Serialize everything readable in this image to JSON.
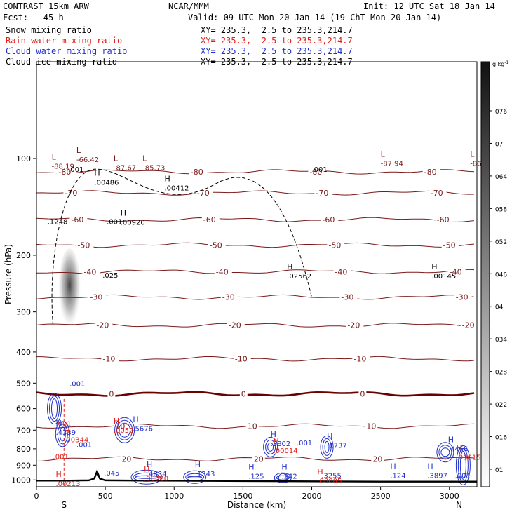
{
  "header": {
    "model": "CONTRAST 15km ARW",
    "org": "NCAR/MMM",
    "init": "Init: 12 UTC Sat 18 Jan 14",
    "fcst": "Fcst:   45 h",
    "valid": "Valid: 09 UTC Mon 20 Jan 14 (19 ChT Mon 20 Jan 14)"
  },
  "fields": [
    {
      "name": "Snow mixing ratio",
      "xy": "XY= 235.3,  2.5 to 235.3,214.7",
      "color": "#000000"
    },
    {
      "name": "Rain water mixing ratio",
      "xy": "XY= 235.3,  2.5 to 235.3,214.7",
      "color": "#e0201b"
    },
    {
      "name": "Cloud water mixing ratio",
      "xy": "XY= 235.3,  2.5 to 235.3,214.7",
      "color": "#1f2fc9"
    },
    {
      "name": "Cloud ice mixing ratio",
      "xy": "XY= 235.3,  2.5 to 235.3,214.7",
      "color": "#000000"
    }
  ],
  "colors": {
    "temperature": "#7b1a1a",
    "freezing_line": "#6a0000",
    "rain": "#e0201b",
    "cloud_water": "#1f2fc9",
    "terrain": "#000000"
  },
  "chart_data": {
    "type": "line",
    "xlabel": "Distance (km)",
    "ylabel": "Pressure (hPa)",
    "xlim": [
      0,
      3200
    ],
    "ylim": [
      1050,
      50
    ],
    "y_scale": "log-pressure",
    "x_ticks": [
      "0",
      "500",
      "1000",
      "1500",
      "2000",
      "2500",
      "3000"
    ],
    "y_ticks": [
      "100",
      "200",
      "300",
      "400",
      "500",
      "600",
      "700",
      "800",
      "900",
      "1000"
    ],
    "endpoints": {
      "left": "S",
      "right": "N"
    },
    "colorbar": {
      "unit": "g kg",
      "unit_exp": "-1",
      "ticks": [
        ".076",
        ".07",
        ".064",
        ".058",
        ".052",
        ".046",
        ".04",
        ".034",
        ".028",
        ".022",
        ".016",
        ".01"
      ]
    },
    "temperature_isotherms": [
      {
        "label": "-80",
        "p": 110,
        "x": [
          0,
          3200
        ]
      },
      {
        "label": "-70",
        "p": 128,
        "x": [
          0,
          3200
        ]
      },
      {
        "label": "-60",
        "p": 155,
        "x": [
          0,
          3200
        ]
      },
      {
        "label": "-50",
        "p": 186,
        "x": [
          0,
          3200
        ]
      },
      {
        "label": "-40",
        "p": 225,
        "x": [
          0,
          3200
        ]
      },
      {
        "label": "-30",
        "p": 270,
        "x": [
          0,
          3200
        ]
      },
      {
        "label": "-20",
        "p": 330,
        "x": [
          0,
          3200
        ]
      },
      {
        "label": "-10",
        "p": 420,
        "x": [
          0,
          3200
        ]
      },
      {
        "label": "0",
        "p": 540,
        "x": [
          0,
          3200
        ]
      },
      {
        "label": "10",
        "p": 680,
        "x": [
          0,
          3200
        ]
      },
      {
        "label": "20",
        "p": 860,
        "x": [
          0,
          3200
        ]
      }
    ],
    "terrain": {
      "x": [
        0,
        200,
        380,
        420,
        440,
        460,
        500,
        800,
        1500,
        2000,
        2500,
        3000,
        3200
      ],
      "p": [
        1005,
        1005,
        1003,
        990,
        940,
        990,
        1003,
        1005,
        1008,
        1010,
        1012,
        1012,
        1012
      ]
    },
    "isotherm_labels": [
      "-80",
      "-80",
      "-80",
      "-70",
      "-70",
      "-60",
      "-60",
      "-60",
      "-50",
      "-50",
      "-50",
      "-40",
      "-40",
      "-40",
      "-30",
      "-30",
      "-30",
      "-20",
      "-20",
      "-20",
      "-10",
      "-10",
      "-10",
      "-10",
      "0",
      "0",
      "10",
      "10",
      "10",
      "20",
      "20",
      "20"
    ],
    "extrema": [
      {
        "kind": "L",
        "value": "-88.19",
        "x": 110,
        "p": 107,
        "color": "#7b1a1a"
      },
      {
        "kind": "L",
        "value": "-66.42",
        "x": 290,
        "p": 102,
        "color": "#7b1a1a"
      },
      {
        "kind": "L",
        "value": "-87.67",
        "x": 560,
        "p": 108,
        "color": "#7b1a1a"
      },
      {
        "kind": "L",
        "value": "-85.73",
        "x": 770,
        "p": 108,
        "color": "#7b1a1a"
      },
      {
        "kind": "L",
        "value": "-87.94",
        "x": 2500,
        "p": 105,
        "color": "#7b1a1a"
      },
      {
        "kind": "L",
        "value": "-86.",
        "x": 3150,
        "p": 105,
        "color": "#7b1a1a"
      },
      {
        "kind": "H",
        "value": ".00486",
        "x": 420,
        "p": 120,
        "color": "#000000"
      },
      {
        "kind": "H",
        "value": ".00412",
        "x": 930,
        "p": 125,
        "color": "#000000"
      },
      {
        "kind": "H",
        "value": ".00920",
        "x": 610,
        "p": 160,
        "color": "#000000"
      },
      {
        "kind": "H",
        "value": ".02562",
        "x": 1820,
        "p": 235,
        "color": "#000000"
      },
      {
        "kind": "H",
        "value": ".00145",
        "x": 2870,
        "p": 235,
        "color": "#000000"
      },
      {
        "kind": "H",
        "value": ".4339",
        "x": 140,
        "p": 720,
        "color": "#1f2fc9"
      },
      {
        "kind": "H",
        "value": ".5676",
        "x": 700,
        "p": 700,
        "color": "#1f2fc9"
      },
      {
        "kind": "H",
        "value": ".3802",
        "x": 1700,
        "p": 780,
        "color": "#1f2fc9"
      },
      {
        "kind": "H",
        "value": ".1737",
        "x": 2110,
        "p": 790,
        "color": "#1f2fc9"
      },
      {
        "kind": "H",
        "value": ".4466",
        "x": 2990,
        "p": 810,
        "color": "#1f2fc9"
      },
      {
        "kind": "H",
        "value": ".4834",
        "x": 800,
        "p": 970,
        "color": "#1f2fc9"
      },
      {
        "kind": "H",
        "value": ".1343",
        "x": 1150,
        "p": 970,
        "color": "#1f2fc9"
      },
      {
        "kind": "H",
        "value": ".125",
        "x": 1540,
        "p": 985,
        "color": "#1f2fc9"
      },
      {
        "kind": "H",
        "value": ".242",
        "x": 1780,
        "p": 985,
        "color": "#1f2fc9"
      },
      {
        "kind": "H",
        "value": ".124",
        "x": 2570,
        "p": 980,
        "color": "#1f2fc9"
      },
      {
        "kind": "H",
        "value": ".3897",
        "x": 2840,
        "p": 980,
        "color": "#1f2fc9"
      },
      {
        "kind": "H",
        "value": ".00213",
        "x": 140,
        "p": 1040,
        "color": "#e0201b"
      },
      {
        "kind": "H",
        "value": ".00080",
        "x": 780,
        "p": 1000,
        "color": "#e0201b"
      },
      {
        "kind": "H",
        "value": ".00005",
        "x": 2040,
        "p": 1020,
        "color": "#e0201b"
      },
      {
        "kind": "H",
        "value": ".00014",
        "x": 1720,
        "p": 820,
        "color": "#e0201b"
      },
      {
        "kind": "H",
        "value": ".00015",
        "x": 3050,
        "p": 860,
        "color": "#e0201b"
      },
      {
        "kind": "H",
        "value": ".0052",
        "x": 560,
        "p": 710,
        "color": "#e0201b"
      },
      {
        "kind": "H",
        "value": ".00344",
        "x": 200,
        "p": 760,
        "color": "#e0201b"
      }
    ],
    "contour_labels": [
      {
        "text": ".001",
        "x": 230,
        "p": 110,
        "color": "#000000"
      },
      {
        "text": ".001",
        "x": 2000,
        "p": 110,
        "color": "#000000"
      },
      {
        "text": ".001",
        "x": 510,
        "p": 160,
        "color": "#000000"
      },
      {
        "text": ".1248",
        "x": 80,
        "p": 160,
        "color": "#000000"
      },
      {
        "text": ".025",
        "x": 480,
        "p": 235,
        "color": "#000000"
      },
      {
        "text": ".001",
        "x": 240,
        "p": 510,
        "color": "#1f2fc9"
      },
      {
        "text": ".001",
        "x": 1890,
        "p": 780,
        "color": "#1f2fc9"
      },
      {
        "text": ".001",
        "x": 290,
        "p": 790,
        "color": "#1f2fc9"
      },
      {
        "text": ".045",
        "x": 490,
        "p": 970,
        "color": "#1f2fc9"
      },
      {
        "text": ".001",
        "x": 3040,
        "p": 985,
        "color": "#1f2fc9"
      },
      {
        "text": ".001",
        "x": 140,
        "p": 680,
        "color": "#e0201b"
      },
      {
        "text": ".001",
        "x": 120,
        "p": 860,
        "color": "#e0201b"
      },
      {
        "text": ".3255",
        "x": 2070,
        "p": 985,
        "color": "#1f2fc9"
      }
    ]
  }
}
